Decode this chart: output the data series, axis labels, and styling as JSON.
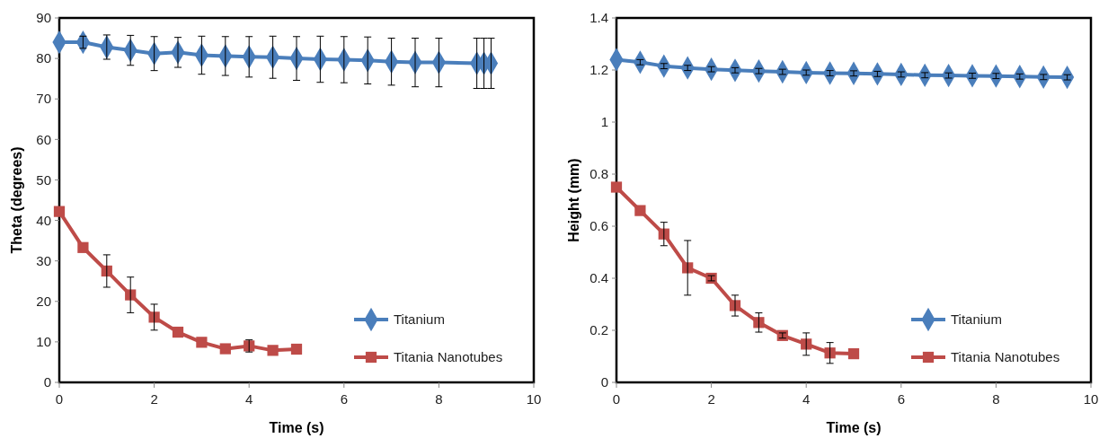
{
  "chart_data": [
    {
      "type": "line",
      "xlabel": "Time (s)",
      "ylabel": "Theta (degrees)",
      "xlim": [
        0,
        10
      ],
      "xticks": [
        0,
        2,
        4,
        6,
        8,
        10
      ],
      "ylim": [
        0,
        90
      ],
      "yticks": [
        0,
        10,
        20,
        30,
        40,
        50,
        60,
        70,
        80,
        90
      ],
      "grid": false,
      "legend": "bottom right",
      "line_style": "solid",
      "series": [
        {
          "name": "Titanium",
          "color": "#4a7ebb",
          "marker": "diamond",
          "x": [
            0,
            0.5,
            1,
            1.5,
            2,
            2.5,
            3,
            3.5,
            4,
            4.5,
            5,
            5.5,
            6,
            6.5,
            7,
            7.5,
            8,
            8.8,
            8.95,
            9.1
          ],
          "values": [
            84,
            84,
            82.8,
            82,
            81.2,
            81.5,
            80.8,
            80.6,
            80.4,
            80.3,
            80,
            79.8,
            79.7,
            79.5,
            79.2,
            79,
            79,
            78.8,
            78.8,
            78.8
          ],
          "errors": [
            null,
            1.5,
            3,
            3.7,
            4.2,
            3.7,
            4.7,
            4.8,
            5,
            5.2,
            5.4,
            5.7,
            5.7,
            5.8,
            5.8,
            6,
            6,
            6.2,
            6.2,
            6.2
          ]
        },
        {
          "name": "Titania Nanotubes",
          "color": "#be4b48",
          "marker": "square",
          "x": [
            0,
            0.5,
            1,
            1.5,
            2,
            2.5,
            3,
            3.5,
            4,
            4.5,
            5
          ],
          "values": [
            42.2,
            33.3,
            27.5,
            21.6,
            16.1,
            12.4,
            9.9,
            8.3,
            9,
            7.9,
            8.2
          ],
          "errors": [
            null,
            null,
            4,
            4.4,
            3.2,
            null,
            null,
            null,
            1.5,
            null,
            null
          ]
        }
      ]
    },
    {
      "type": "line",
      "xlabel": "Time (s)",
      "ylabel": "Height (mm)",
      "xlim": [
        0,
        10
      ],
      "xticks": [
        0,
        2,
        4,
        6,
        8,
        10
      ],
      "ylim": [
        0,
        1.4
      ],
      "yticks": [
        0,
        0.2,
        0.4,
        0.6,
        0.8,
        1,
        1.2,
        1.4
      ],
      "grid": false,
      "legend": "bottom right",
      "line_style": "solid",
      "series": [
        {
          "name": "Titanium",
          "color": "#4a7ebb",
          "marker": "diamond",
          "x": [
            0,
            0.5,
            1,
            1.5,
            2,
            2.5,
            3,
            3.5,
            4,
            4.5,
            5,
            5.5,
            6,
            6.5,
            7,
            7.5,
            8,
            8.5,
            9,
            9.5
          ],
          "values": [
            1.24,
            1.23,
            1.215,
            1.208,
            1.203,
            1.199,
            1.196,
            1.193,
            1.19,
            1.188,
            1.187,
            1.185,
            1.183,
            1.18,
            1.179,
            1.178,
            1.177,
            1.175,
            1.173,
            1.172
          ],
          "errors": [
            null,
            0.01,
            0.01,
            0.01,
            0.01,
            0.01,
            0.01,
            0.01,
            0.01,
            0.01,
            0.01,
            0.01,
            0.01,
            0.01,
            0.01,
            0.01,
            0.01,
            0.01,
            0.01,
            0.01
          ]
        },
        {
          "name": "Titania Nanotubes",
          "color": "#be4b48",
          "marker": "square",
          "x": [
            0,
            0.5,
            1,
            1.5,
            2,
            2.5,
            3,
            3.5,
            4,
            4.5,
            5
          ],
          "values": [
            0.75,
            0.66,
            0.57,
            0.44,
            0.4,
            0.295,
            0.23,
            0.18,
            0.147,
            0.113,
            0.11
          ],
          "errors": [
            null,
            null,
            0.045,
            0.105,
            0.01,
            0.04,
            0.037,
            0.01,
            0.043,
            0.04,
            null
          ]
        }
      ]
    }
  ]
}
